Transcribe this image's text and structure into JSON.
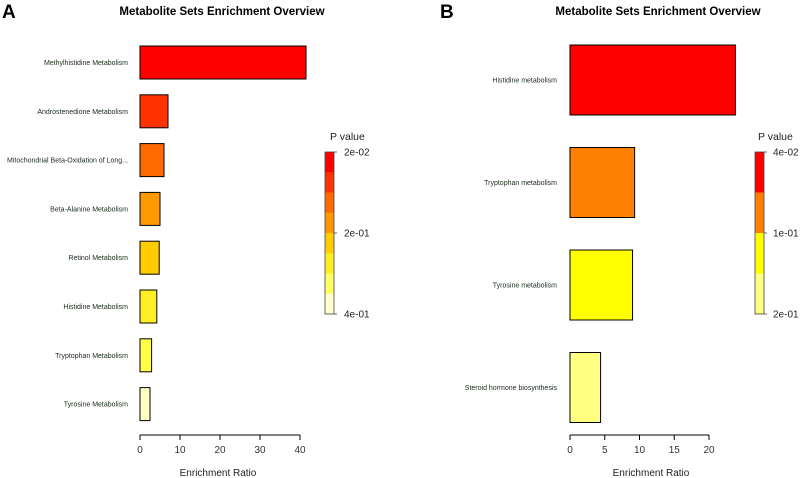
{
  "chart_data": [
    {
      "panel": "A",
      "type": "bar",
      "orientation": "horizontal",
      "title": "Metabolite Sets Enrichment Overview",
      "xlabel": "Enrichment Ratio",
      "xlim": [
        0,
        43
      ],
      "xticks": [
        0,
        10,
        20,
        30,
        40
      ],
      "categories": [
        "Methylhistidine Metabolism",
        "Androstenedione Metabolism",
        "Mitochondrial Beta-Oxidation of Long...",
        "Beta-Alanine Metabolism",
        "Retinol Metabolism",
        "Histidine Metabolism",
        "Tryptophan Metabolism",
        "Tyrosine Metabolism"
      ],
      "values": [
        41.5,
        7.0,
        6.0,
        5.0,
        4.8,
        4.2,
        2.9,
        2.5
      ],
      "colors": [
        "#ff0000",
        "#ff3300",
        "#ff6a00",
        "#ff9900",
        "#ffcc00",
        "#ffee22",
        "#ffff44",
        "#ffffc0"
      ],
      "legend": {
        "title": "P value",
        "position": "right",
        "labels": [
          "2e-02",
          "2e-01",
          "4e-01"
        ],
        "colors": [
          "#ff0000",
          "#ff3300",
          "#ff6a00",
          "#ff9900",
          "#ffcc00",
          "#ffee22",
          "#ffff66",
          "#ffffcc"
        ]
      }
    },
    {
      "panel": "B",
      "type": "bar",
      "orientation": "horizontal",
      "title": "Metabolite Sets Enrichment Overview",
      "xlabel": "Enrichment Ratio",
      "xlim": [
        0,
        24
      ],
      "xticks": [
        0,
        5,
        10,
        15,
        20
      ],
      "categories": [
        "Histidine metabolism",
        "Tryptophan metabolism",
        "Tyrosine metabolism",
        "Steroid hormone biosynthesis"
      ],
      "values": [
        23.8,
        9.3,
        9.0,
        4.4
      ],
      "colors": [
        "#ff0000",
        "#ff8000",
        "#ffff00",
        "#ffff80"
      ],
      "legend": {
        "title": "P value",
        "position": "right",
        "labels": [
          "4e-02",
          "1e-01",
          "2e-01"
        ],
        "colors": [
          "#ff0000",
          "#ff8000",
          "#ffff00",
          "#ffff80"
        ]
      }
    }
  ]
}
